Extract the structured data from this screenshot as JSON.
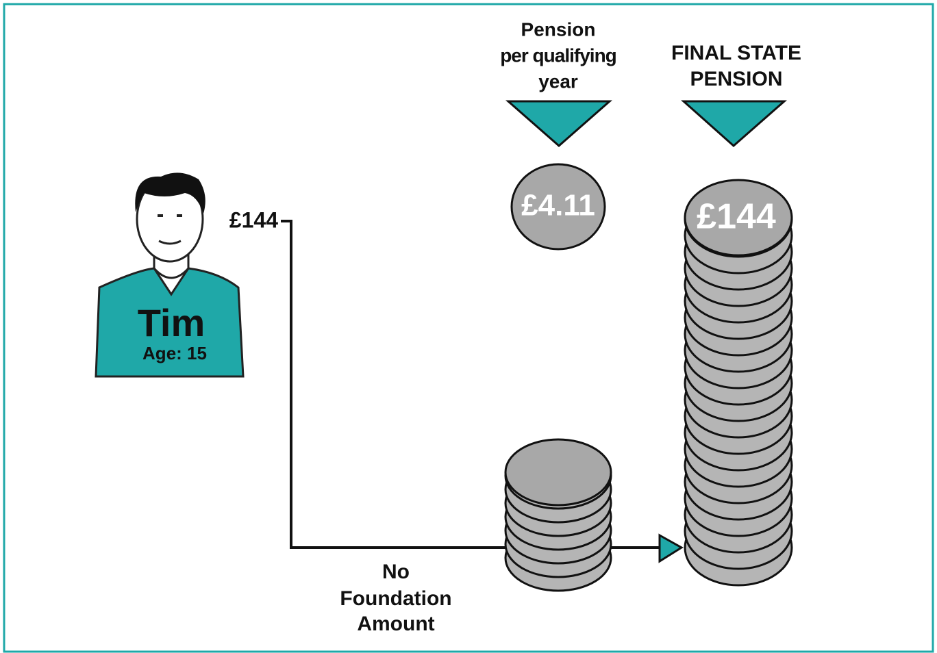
{
  "person": {
    "name": "Tim",
    "age": "Age: 15"
  },
  "axis_label": "£144",
  "foundation_label": [
    "No",
    "Foundation",
    "Amount"
  ],
  "pension_per_year": {
    "heading": [
      "Pension",
      "per qualifying",
      "year"
    ],
    "coin_label": "£4.11"
  },
  "final_state_pension": {
    "heading": [
      "FINAL STATE",
      "PENSION"
    ],
    "coin_label": "£144"
  }
}
